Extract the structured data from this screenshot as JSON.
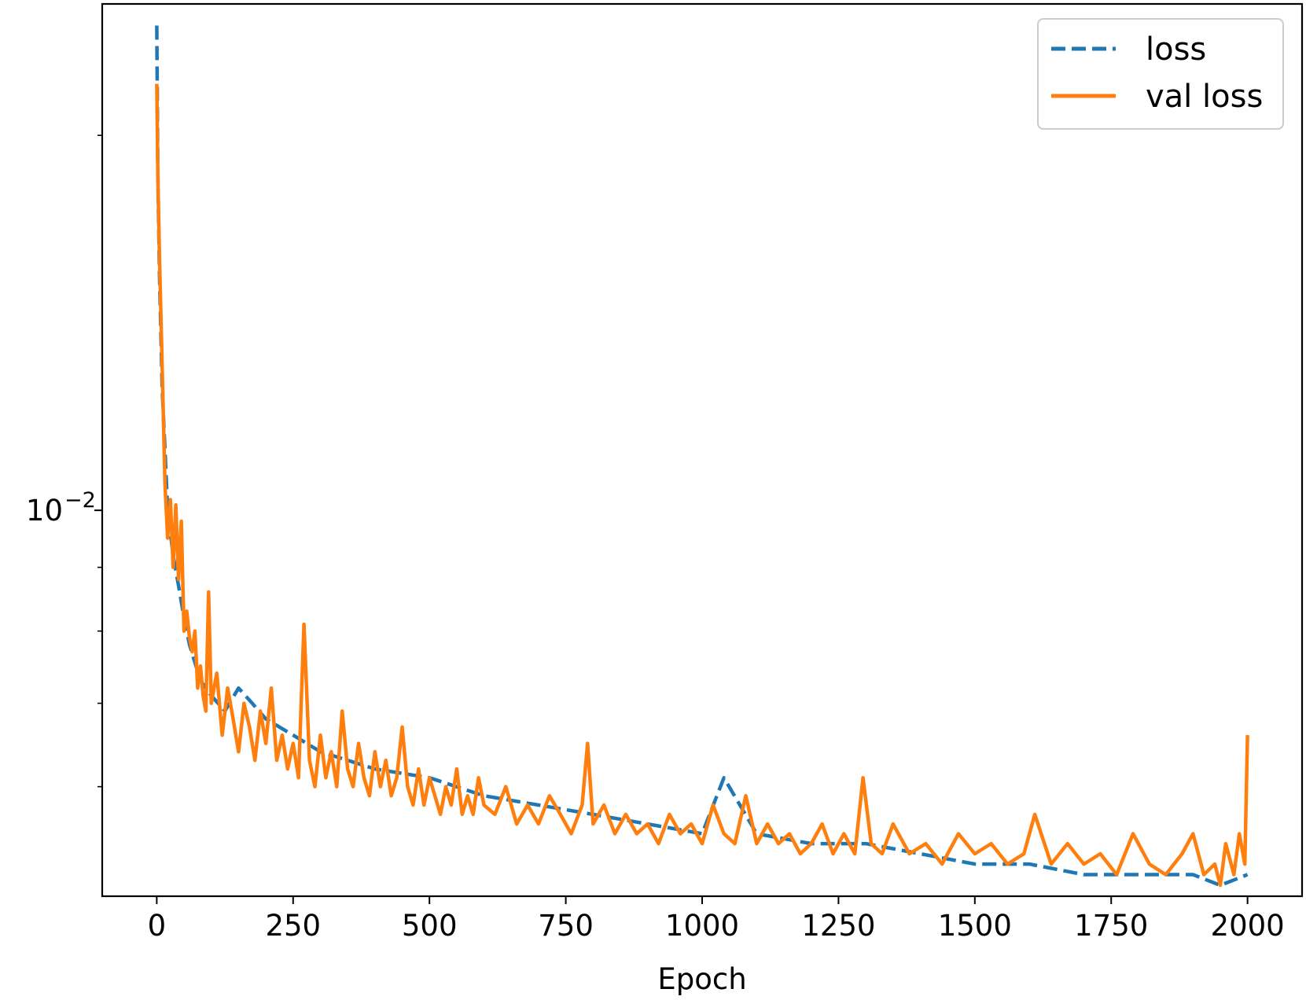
{
  "chart_data": {
    "type": "line",
    "title": "",
    "xlabel": "Epoch",
    "ylabel": "",
    "xlim": [
      -100,
      2100
    ],
    "ylim": [
      0.0049,
      0.0255
    ],
    "yscale": "log",
    "xticks": [
      0,
      250,
      500,
      750,
      1000,
      1250,
      1500,
      1750,
      2000
    ],
    "xtick_labels": [
      "0",
      "250",
      "500",
      "750",
      "1000",
      "1250",
      "1500",
      "1750",
      "2000"
    ],
    "yticks_major": [
      0.01
    ],
    "ytick_labels": [
      "10",
      "−2"
    ],
    "yticks_minor": [
      0.006,
      0.007,
      0.008,
      0.009,
      0.02
    ],
    "grid": false,
    "legend": "top-right",
    "series": [
      {
        "name": "loss",
        "color": "#1f77b4",
        "style": "dashed",
        "x": [
          0,
          2,
          5,
          10,
          15,
          20,
          30,
          40,
          50,
          60,
          80,
          100,
          125,
          150,
          175,
          200,
          250,
          300,
          350,
          400,
          500,
          600,
          700,
          800,
          900,
          1000,
          1040,
          1100,
          1200,
          1300,
          1400,
          1500,
          1600,
          1700,
          1800,
          1900,
          1950,
          2000
        ],
        "y": [
          0.0245,
          0.0185,
          0.0155,
          0.0125,
          0.0112,
          0.01,
          0.0092,
          0.0087,
          0.0082,
          0.0078,
          0.0073,
          0.0071,
          0.0069,
          0.0072,
          0.007,
          0.0068,
          0.0066,
          0.0064,
          0.0063,
          0.0062,
          0.0061,
          0.0059,
          0.0058,
          0.0057,
          0.0056,
          0.0055,
          0.0061,
          0.0055,
          0.0054,
          0.0054,
          0.0053,
          0.0052,
          0.0052,
          0.0051,
          0.0051,
          0.0051,
          0.005,
          0.0051
        ]
      },
      {
        "name": "val loss",
        "color": "#ff7f0e",
        "style": "solid",
        "x": [
          0,
          2,
          5,
          10,
          15,
          20,
          25,
          30,
          35,
          40,
          45,
          50,
          55,
          60,
          65,
          70,
          75,
          80,
          85,
          90,
          95,
          100,
          110,
          120,
          130,
          140,
          150,
          160,
          170,
          180,
          190,
          200,
          210,
          220,
          230,
          240,
          250,
          260,
          270,
          280,
          290,
          300,
          310,
          320,
          330,
          340,
          350,
          360,
          370,
          380,
          390,
          400,
          410,
          420,
          430,
          440,
          450,
          460,
          470,
          480,
          490,
          500,
          510,
          520,
          530,
          540,
          550,
          560,
          570,
          580,
          590,
          600,
          620,
          640,
          660,
          680,
          700,
          720,
          740,
          760,
          780,
          790,
          800,
          820,
          840,
          860,
          880,
          900,
          920,
          940,
          960,
          980,
          1000,
          1020,
          1040,
          1060,
          1080,
          1100,
          1120,
          1140,
          1160,
          1180,
          1200,
          1220,
          1240,
          1260,
          1280,
          1295,
          1310,
          1330,
          1350,
          1380,
          1410,
          1440,
          1470,
          1500,
          1530,
          1560,
          1590,
          1610,
          1640,
          1670,
          1700,
          1730,
          1760,
          1790,
          1820,
          1850,
          1880,
          1900,
          1920,
          1940,
          1950,
          1960,
          1975,
          1985,
          1995,
          2000
        ],
        "y": [
          0.022,
          0.0185,
          0.016,
          0.013,
          0.0105,
          0.0095,
          0.0102,
          0.009,
          0.0101,
          0.0088,
          0.0098,
          0.008,
          0.0083,
          0.0079,
          0.0077,
          0.008,
          0.0072,
          0.0075,
          0.0071,
          0.0069,
          0.0086,
          0.007,
          0.0074,
          0.0066,
          0.0072,
          0.0068,
          0.0064,
          0.007,
          0.0067,
          0.0063,
          0.0069,
          0.0065,
          0.0072,
          0.0063,
          0.0066,
          0.0062,
          0.0065,
          0.0061,
          0.0081,
          0.0063,
          0.006,
          0.0066,
          0.0061,
          0.0064,
          0.006,
          0.0069,
          0.0062,
          0.006,
          0.0065,
          0.0061,
          0.0059,
          0.0064,
          0.006,
          0.0063,
          0.0059,
          0.0061,
          0.0067,
          0.006,
          0.0058,
          0.0062,
          0.0058,
          0.0061,
          0.0059,
          0.0057,
          0.006,
          0.0058,
          0.0062,
          0.0057,
          0.0059,
          0.0057,
          0.0061,
          0.0058,
          0.0057,
          0.006,
          0.0056,
          0.0058,
          0.0056,
          0.0059,
          0.0057,
          0.0055,
          0.0058,
          0.0065,
          0.0056,
          0.0058,
          0.0055,
          0.0057,
          0.0055,
          0.0056,
          0.0054,
          0.0057,
          0.0055,
          0.0056,
          0.0054,
          0.0058,
          0.0055,
          0.0054,
          0.0059,
          0.0054,
          0.0056,
          0.0054,
          0.0055,
          0.0053,
          0.0054,
          0.0056,
          0.0053,
          0.0055,
          0.0053,
          0.0061,
          0.0054,
          0.0053,
          0.0056,
          0.0053,
          0.0054,
          0.0052,
          0.0055,
          0.0053,
          0.0054,
          0.0052,
          0.0053,
          0.0057,
          0.0052,
          0.0054,
          0.0052,
          0.0053,
          0.0051,
          0.0055,
          0.0052,
          0.0051,
          0.0053,
          0.0055,
          0.0051,
          0.0052,
          0.005,
          0.0054,
          0.0051,
          0.0055,
          0.0052,
          0.0066
        ]
      }
    ]
  }
}
